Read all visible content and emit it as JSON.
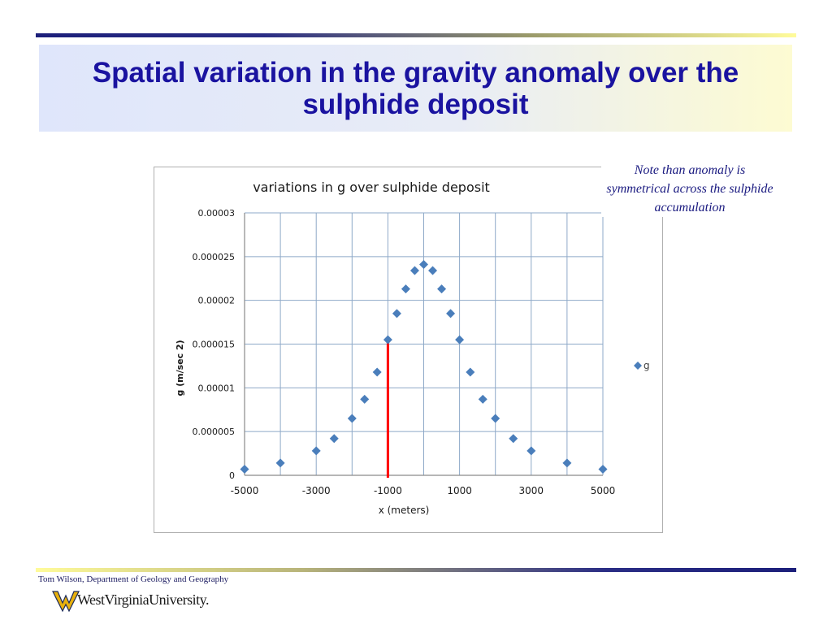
{
  "slide": {
    "title": "Spatial variation in the gravity anomaly over the sulphide deposit",
    "note": "Note than anomaly is symmetrical across the sulphide accumulation",
    "footer": "Tom Wilson, Department of Geology and Geography",
    "logo_text": "WestVirginiaUniversity."
  },
  "colors": {
    "title": "#1a13a0",
    "marker": "#4a7ebb",
    "reference_line": "#ff0000",
    "grid": "#8ea9c8"
  },
  "chart_data": {
    "type": "scatter",
    "title": "variations in g over sulphide deposit",
    "xlabel": "x (meters)",
    "ylabel": "g (m/sec 2)",
    "xlim": [
      -5000,
      5000
    ],
    "ylim": [
      0,
      3e-05
    ],
    "x_ticks": [
      "-5000",
      "-3000",
      "-1000",
      "1000",
      "3000",
      "5000"
    ],
    "y_ticks": [
      "0",
      "0.000005",
      "0.00001",
      "0.000015",
      "0.00002",
      "0.000025",
      "0.00003"
    ],
    "grid": true,
    "legend_position": "right",
    "series": [
      {
        "name": "g",
        "x": [
          -5000,
          -4000,
          -3000,
          -2500,
          -2000,
          -1650,
          -1300,
          -1000,
          -750,
          -500,
          -250,
          0,
          250,
          500,
          750,
          1000,
          1300,
          1650,
          2000,
          2500,
          3000,
          4000,
          5000
        ],
        "y": [
          7e-07,
          1.4e-06,
          2.8e-06,
          4.2e-06,
          6.5e-06,
          8.7e-06,
          1.18e-05,
          1.55e-05,
          1.85e-05,
          2.13e-05,
          2.34e-05,
          2.41e-05,
          2.34e-05,
          2.13e-05,
          1.85e-05,
          1.55e-05,
          1.18e-05,
          8.7e-06,
          6.5e-06,
          4.2e-06,
          2.8e-06,
          1.4e-06,
          7e-07
        ]
      }
    ],
    "reference_line": {
      "x": -1000,
      "y_top": 1.55e-05
    }
  }
}
